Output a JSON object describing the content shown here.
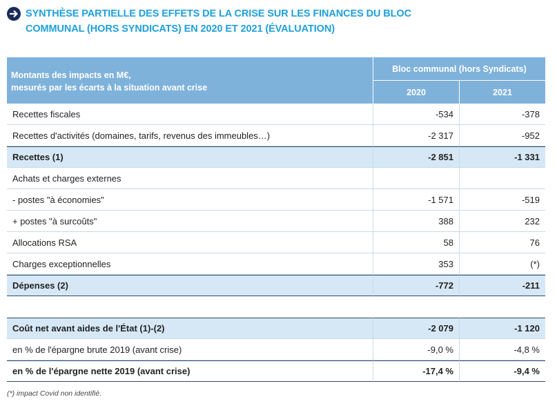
{
  "title": {
    "line1": "SYNTHÈSE PARTIELLE DES EFFETS DE LA CRISE SUR LES FINANCES DU BLOC",
    "line2": "COMMUNAL (HORS SYNDICATS) EN 2020 ET 2021 (ÉVALUATION)"
  },
  "table": {
    "header": {
      "label_line1": "Montants des impacts en M€,",
      "label_line2": "mesurés par les écarts à la situation avant crise",
      "group": "Bloc communal (hors Syndicats)",
      "years": [
        "2020",
        "2021"
      ]
    },
    "rows": [
      [
        "Recettes fiscales",
        "-534",
        "-378"
      ],
      [
        "Recettes d'activités (domaines, tarifs, revenus des immeubles…)",
        "-2 317",
        "-952"
      ],
      [
        "Recettes (1)",
        "-2 851",
        "-1 331"
      ],
      [
        "Achats et charges externes"
      ],
      [
        "- postes \"à économies\"",
        "-1 571",
        "-519"
      ],
      [
        "+ postes \"à surcoûts\"",
        "388",
        "232"
      ],
      [
        "Allocations RSA",
        "58",
        "76"
      ],
      [
        "Charges exceptionnelles",
        "353",
        "(*)"
      ],
      [
        "Dépenses (2)",
        "-772",
        "-211"
      ],
      [
        "Coût net avant aides de l'État (1)-(2)",
        "-2 079",
        "-1 120"
      ],
      [
        "en % de l'épargne brute 2019 (avant crise)",
        "-9,0 %",
        "-4,8 %"
      ],
      [
        "en % de l'épargne nette 2019 (avant crise)",
        "-17,4 %",
        "-9,4 %"
      ]
    ]
  },
  "footnote": "(*) impact Covid non identifié."
}
